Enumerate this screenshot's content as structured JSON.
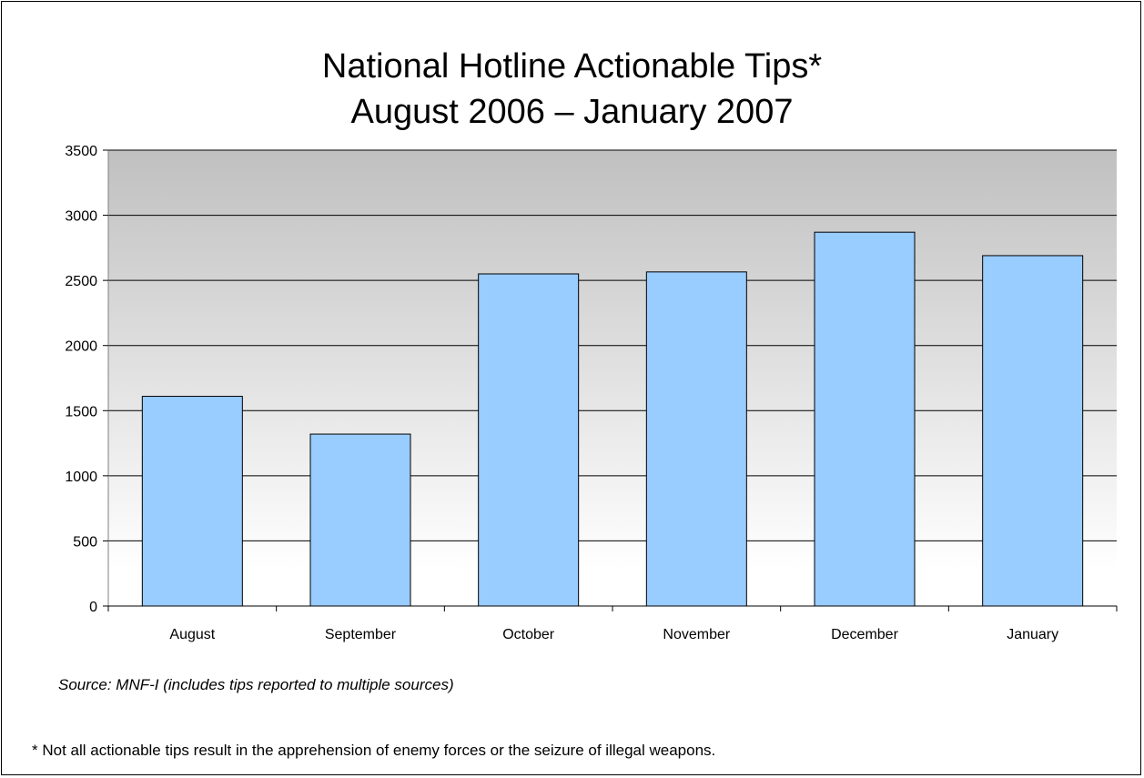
{
  "chart_data": {
    "type": "bar",
    "title": "National Hotline Actionable Tips*",
    "subtitle": "August 2006 – January 2007",
    "categories": [
      "August",
      "September",
      "October",
      "November",
      "December",
      "January"
    ],
    "values": [
      1610,
      1320,
      2550,
      2565,
      2870,
      2690
    ],
    "ylim": [
      0,
      3500
    ],
    "yticks": [
      0,
      500,
      1000,
      1500,
      2000,
      2500,
      3000,
      3500
    ],
    "grid": true,
    "legend": "none",
    "colors": {
      "bar": "#99ccff",
      "bar_stroke": "#000000",
      "plot_top": "#c0c0c0",
      "plot_bottom": "#ffffff"
    }
  },
  "source_note": "Source: MNF-I (includes tips reported to multiple sources)",
  "footnote": "* Not all actionable tips result in the apprehension of enemy forces or the seizure of illegal weapons."
}
